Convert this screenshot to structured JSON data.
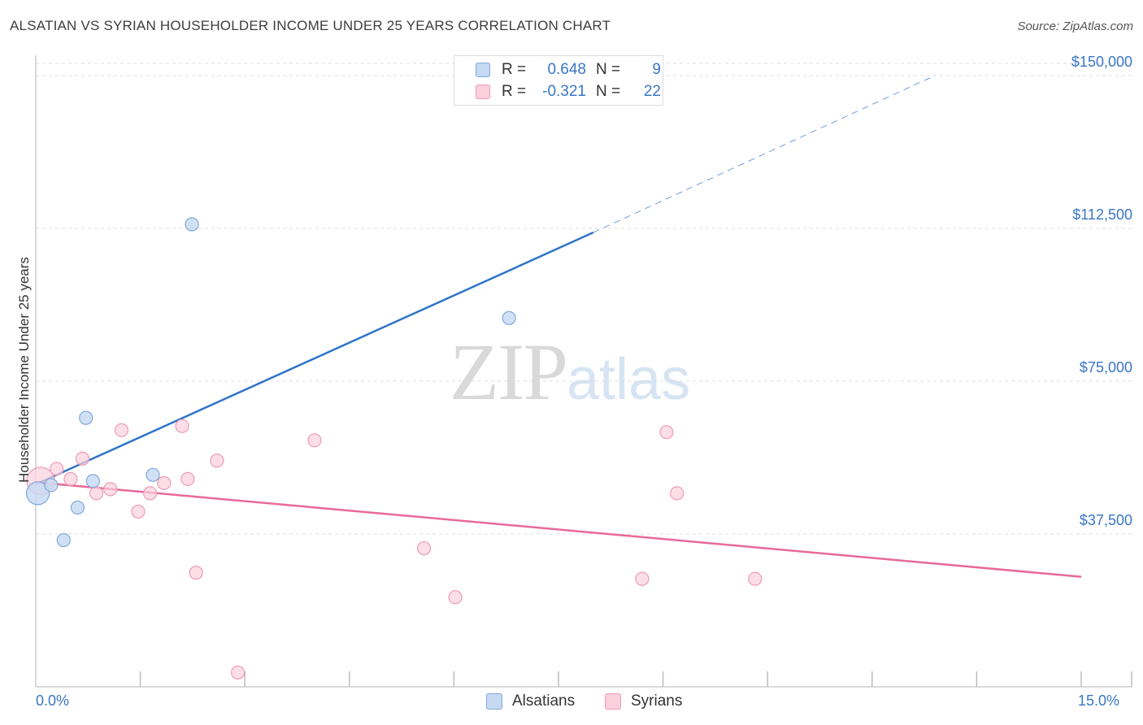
{
  "title": "ALSATIAN VS SYRIAN HOUSEHOLDER INCOME UNDER 25 YEARS CORRELATION CHART",
  "source": "Source: ZipAtlas.com",
  "watermark": {
    "zip": "ZIP",
    "atlas": "atlas"
  },
  "legend": {
    "r_label": "R =",
    "n_label": "N =",
    "rows": [
      {
        "r": "0.648",
        "n": "9",
        "fill": "#c5d9f3",
        "stroke": "#7fa8dc"
      },
      {
        "r": "-0.321",
        "n": "22",
        "fill": "#fbd0dd",
        "stroke": "#ee9ab5"
      }
    ]
  },
  "colors": {
    "blue_point_fill": "#c5d9f3",
    "blue_point_stroke": "#7fa8dc",
    "blue_line": "#2f74c9",
    "pink_point_fill": "#fbd0dd",
    "pink_point_stroke": "#ee9ab5",
    "pink_line": "#e8699a",
    "grid": "#dcdcdc",
    "axis_label": "#3a76c7"
  },
  "chart_data": {
    "type": "scatter",
    "title": "ALSATIAN VS SYRIAN HOUSEHOLDER INCOME UNDER 25 YEARS CORRELATION CHART",
    "xlabel": "",
    "ylabel": "Householder Income Under 25 years",
    "xlim": [
      0,
      15
    ],
    "ylim": [
      0,
      153000
    ],
    "x_tick_labels": [
      "0.0%",
      "15.0%"
    ],
    "y_ticks": [
      37500,
      75000,
      112500,
      150000
    ],
    "y_tick_labels": [
      "$37,500",
      "$75,000",
      "$112,500",
      "$150,000"
    ],
    "grid": true,
    "legend_position": "bottom",
    "series": [
      {
        "name": "Alsatians",
        "color": "#7fa8dc",
        "points": [
          {
            "x": 0.03,
            "y": 47500,
            "big": true
          },
          {
            "x": 0.22,
            "y": 49500
          },
          {
            "x": 0.4,
            "y": 36000
          },
          {
            "x": 0.6,
            "y": 44000
          },
          {
            "x": 0.72,
            "y": 66000
          },
          {
            "x": 0.82,
            "y": 50500
          },
          {
            "x": 1.68,
            "y": 52000
          },
          {
            "x": 2.24,
            "y": 113500
          },
          {
            "x": 6.79,
            "y": 90500
          }
        ],
        "trend": {
          "x0": 0.0,
          "y0": 49700,
          "x1": 8.0,
          "y1": 111500,
          "dash_x1": 12.9,
          "dash_y1": 150000
        }
      },
      {
        "name": "Syrians",
        "color": "#ee9ab5",
        "points": [
          {
            "x": 0.07,
            "y": 50500,
            "big": true
          },
          {
            "x": 0.3,
            "y": 53500
          },
          {
            "x": 0.5,
            "y": 51000
          },
          {
            "x": 0.67,
            "y": 56000
          },
          {
            "x": 0.87,
            "y": 47500
          },
          {
            "x": 1.07,
            "y": 48500
          },
          {
            "x": 1.23,
            "y": 63000
          },
          {
            "x": 1.47,
            "y": 43000
          },
          {
            "x": 1.64,
            "y": 47500
          },
          {
            "x": 1.84,
            "y": 50000
          },
          {
            "x": 2.1,
            "y": 64000
          },
          {
            "x": 2.18,
            "y": 51000
          },
          {
            "x": 2.3,
            "y": 28000
          },
          {
            "x": 2.6,
            "y": 55500
          },
          {
            "x": 2.9,
            "y": 3500
          },
          {
            "x": 4.0,
            "y": 60500
          },
          {
            "x": 5.57,
            "y": 34000
          },
          {
            "x": 6.02,
            "y": 22000
          },
          {
            "x": 8.7,
            "y": 26500
          },
          {
            "x": 9.05,
            "y": 62500
          },
          {
            "x": 9.2,
            "y": 47500
          },
          {
            "x": 10.32,
            "y": 26500
          }
        ],
        "trend": {
          "x0": 0.0,
          "y0": 50200,
          "x1": 15.0,
          "y1": 27000
        }
      }
    ]
  }
}
